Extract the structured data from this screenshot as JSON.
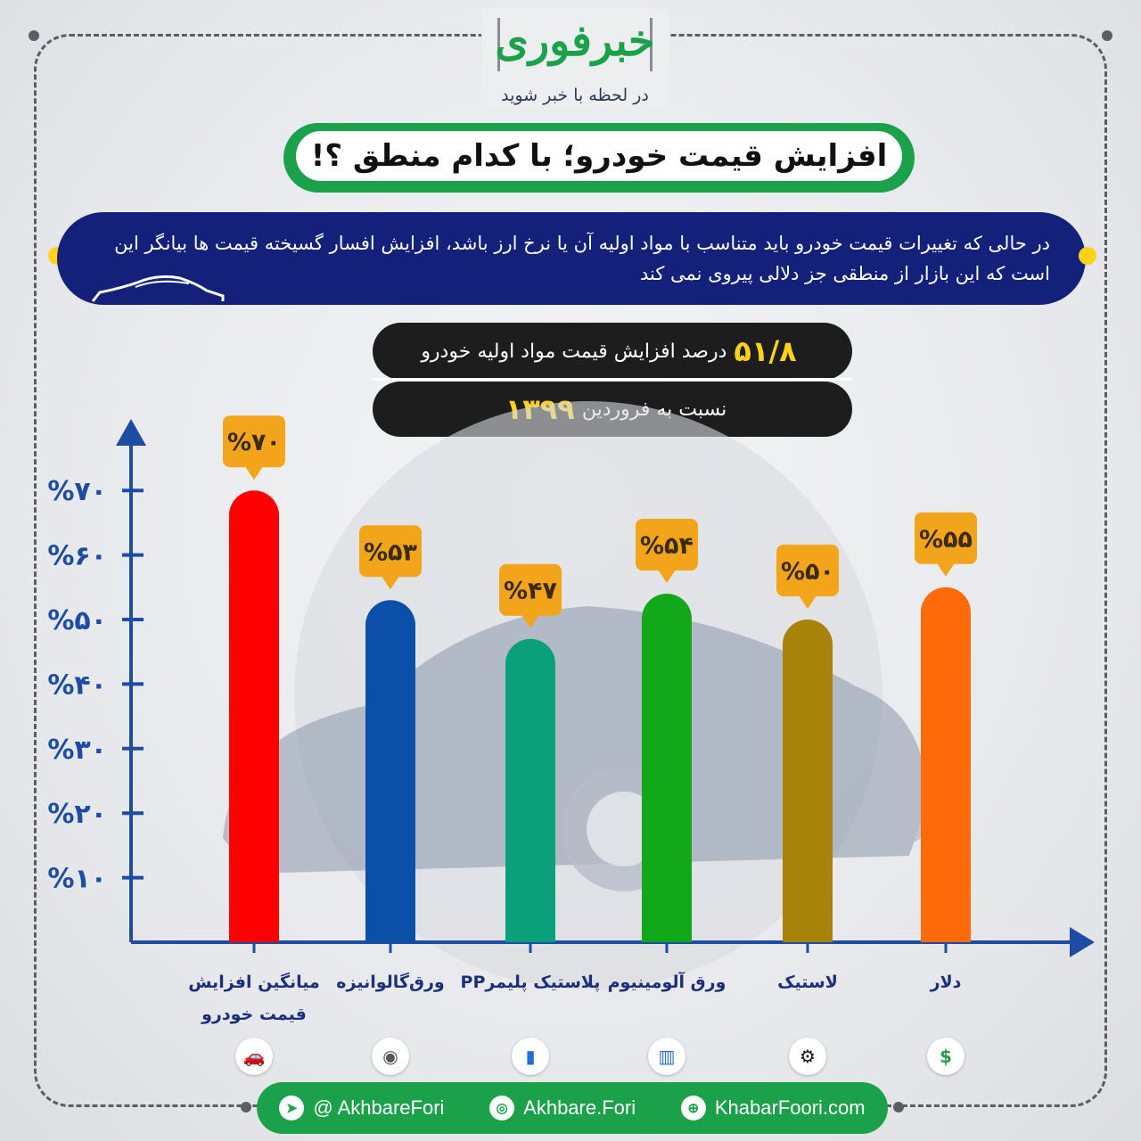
{
  "header": {
    "logo_text": "خبرفوری",
    "tagline": "در لحظه با خبر شوید",
    "title": "افزایش قیمت خودرو؛ با کدام منطق ؟!"
  },
  "intro": {
    "text": "در حالی که تغییرات قیمت خودرو باید متناسب با مواد اولیه آن یا نرخ ارز باشد، افزایش افسار گسیخته قیمت ها بیانگر این است که این بازار از منطقی جز دلالی پیروی نمی کند"
  },
  "stats": {
    "value": "۵۱/۸",
    "value_text": "درصد افزایش قیمت مواد اولیه خودرو",
    "ref_text": "نسبت به فروردین",
    "ref_year": "۱۳۹۹"
  },
  "chart_data": {
    "type": "bar",
    "categories": [
      "میانگین افزایش قیمت خودرو",
      "ورق‌گالوانیزه",
      "پلاستیک پلیمرPP",
      "ورق آلومینیوم",
      "لاستیک",
      "دلار"
    ],
    "values": [
      70,
      53,
      47,
      54,
      50,
      55
    ],
    "data_labels": [
      "%۷۰",
      "%۵۳",
      "%۴۷",
      "%۵۴",
      "%۵۰",
      "%۵۵"
    ],
    "colors": [
      "#ff0000",
      "#0b4fa8",
      "#0aa07a",
      "#12a81a",
      "#a8830a",
      "#ff6a0a"
    ],
    "y_ticks": [
      10,
      20,
      30,
      40,
      50,
      60,
      70
    ],
    "y_tick_labels": [
      "%۱۰",
      "%۲۰",
      "%۳۰",
      "%۴۰",
      "%۵۰",
      "%۶۰",
      "%۷۰"
    ],
    "ylim": [
      0,
      70
    ],
    "axis_color": "#1c4ca3",
    "label_box_color": "#f2a51a",
    "icons": [
      "car-icon",
      "coil-icon",
      "bottles-icon",
      "aluminum-roll-icon",
      "tire-icon",
      "dollar-bill-icon"
    ]
  },
  "footer": {
    "telegram": "@ AkhbareFori",
    "instagram": "Akhbare.Fori",
    "website": "KhabarFoori.com"
  }
}
